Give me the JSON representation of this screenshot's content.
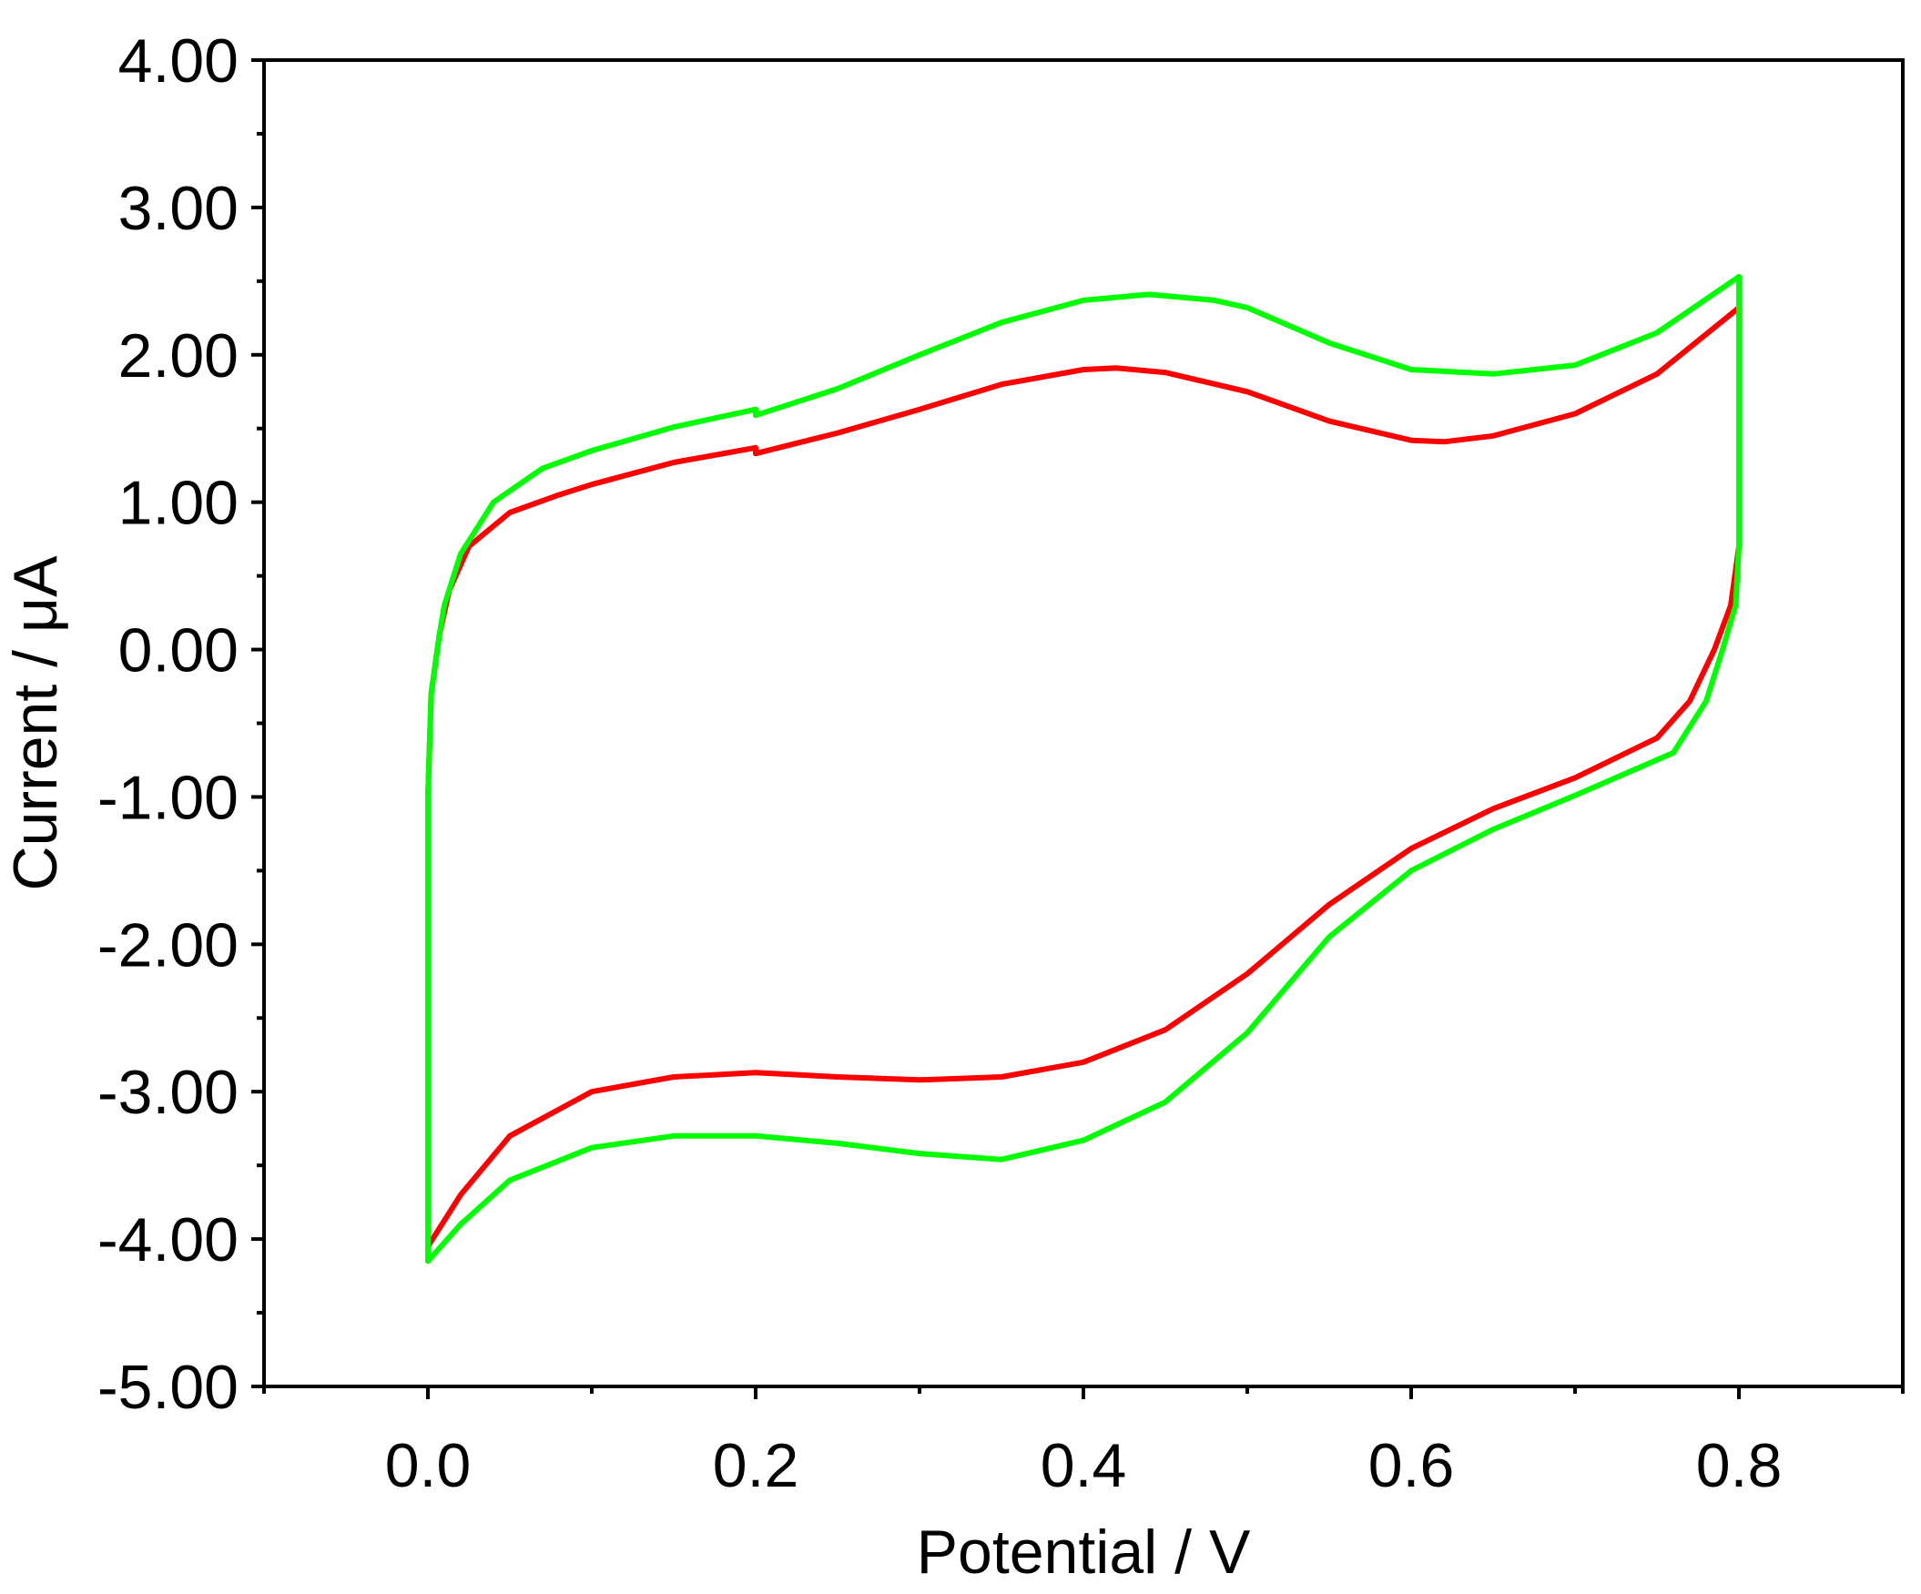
{
  "chart_data": {
    "type": "line",
    "title": "",
    "xlabel": "Potential / V",
    "ylabel": "Current / μA",
    "xlim": [
      -0.1,
      0.9
    ],
    "ylim": [
      -5,
      4
    ],
    "grid": false,
    "legend": "none",
    "x_ticks": [
      0.0,
      0.2,
      0.4,
      0.6,
      0.8
    ],
    "x_tick_labels": [
      "0.0",
      "0.2",
      "0.4",
      "0.6",
      "0.8"
    ],
    "y_ticks": [
      4,
      3,
      2,
      1,
      0,
      -1,
      -2,
      -3,
      -4,
      -5
    ],
    "y_tick_labels": [
      "4.00",
      "3.00",
      "2.00",
      "1.00",
      "0.00",
      "-1.00",
      "-2.00",
      "-3.00",
      "-4.00",
      "-5.00"
    ],
    "series": [
      {
        "color": "#ff0000",
        "points": [
          [
            0.0,
            -4.1
          ],
          [
            0.0,
            -3.0
          ],
          [
            0.0,
            -2.0
          ],
          [
            0.0,
            -1.0
          ],
          [
            0.002,
            -0.3
          ],
          [
            0.007,
            0.1
          ],
          [
            0.013,
            0.4
          ],
          [
            0.025,
            0.7
          ],
          [
            0.05,
            0.93
          ],
          [
            0.08,
            1.05
          ],
          [
            0.1,
            1.12
          ],
          [
            0.15,
            1.27
          ],
          [
            0.2,
            1.37
          ],
          [
            0.2,
            1.33
          ],
          [
            0.25,
            1.47
          ],
          [
            0.3,
            1.63
          ],
          [
            0.35,
            1.8
          ],
          [
            0.4,
            1.9
          ],
          [
            0.42,
            1.91
          ],
          [
            0.45,
            1.88
          ],
          [
            0.5,
            1.75
          ],
          [
            0.55,
            1.55
          ],
          [
            0.6,
            1.42
          ],
          [
            0.62,
            1.41
          ],
          [
            0.65,
            1.45
          ],
          [
            0.7,
            1.6
          ],
          [
            0.75,
            1.87
          ],
          [
            0.8,
            2.32
          ],
          [
            0.8,
            1.5
          ],
          [
            0.8,
            0.7
          ],
          [
            0.795,
            0.3
          ],
          [
            0.785,
            0.0
          ],
          [
            0.77,
            -0.35
          ],
          [
            0.75,
            -0.6
          ],
          [
            0.7,
            -0.87
          ],
          [
            0.65,
            -1.08
          ],
          [
            0.6,
            -1.35
          ],
          [
            0.55,
            -1.73
          ],
          [
            0.5,
            -2.2
          ],
          [
            0.45,
            -2.58
          ],
          [
            0.4,
            -2.8
          ],
          [
            0.35,
            -2.9
          ],
          [
            0.3,
            -2.92
          ],
          [
            0.25,
            -2.9
          ],
          [
            0.2,
            -2.87
          ],
          [
            0.15,
            -2.9
          ],
          [
            0.1,
            -3.0
          ],
          [
            0.05,
            -3.3
          ],
          [
            0.02,
            -3.7
          ],
          [
            0.0,
            -4.05
          ]
        ]
      },
      {
        "color": "#00ff00",
        "points": [
          [
            0.0,
            -4.15
          ],
          [
            0.0,
            -3.0
          ],
          [
            0.0,
            -2.0
          ],
          [
            0.0,
            -1.0
          ],
          [
            0.002,
            -0.3
          ],
          [
            0.007,
            0.1
          ],
          [
            0.01,
            0.3
          ],
          [
            0.02,
            0.65
          ],
          [
            0.04,
            1.0
          ],
          [
            0.07,
            1.23
          ],
          [
            0.1,
            1.35
          ],
          [
            0.15,
            1.51
          ],
          [
            0.2,
            1.63
          ],
          [
            0.2,
            1.59
          ],
          [
            0.25,
            1.77
          ],
          [
            0.3,
            2.0
          ],
          [
            0.35,
            2.22
          ],
          [
            0.4,
            2.37
          ],
          [
            0.44,
            2.41
          ],
          [
            0.48,
            2.37
          ],
          [
            0.5,
            2.32
          ],
          [
            0.55,
            2.08
          ],
          [
            0.6,
            1.9
          ],
          [
            0.65,
            1.87
          ],
          [
            0.7,
            1.93
          ],
          [
            0.75,
            2.15
          ],
          [
            0.8,
            2.53
          ],
          [
            0.8,
            1.5
          ],
          [
            0.8,
            0.7
          ],
          [
            0.798,
            0.3
          ],
          [
            0.79,
            0.0
          ],
          [
            0.78,
            -0.35
          ],
          [
            0.76,
            -0.7
          ],
          [
            0.7,
            -0.99
          ],
          [
            0.65,
            -1.22
          ],
          [
            0.6,
            -1.5
          ],
          [
            0.55,
            -1.95
          ],
          [
            0.5,
            -2.6
          ],
          [
            0.45,
            -3.07
          ],
          [
            0.4,
            -3.33
          ],
          [
            0.35,
            -3.46
          ],
          [
            0.3,
            -3.42
          ],
          [
            0.25,
            -3.35
          ],
          [
            0.2,
            -3.3
          ],
          [
            0.15,
            -3.3
          ],
          [
            0.1,
            -3.38
          ],
          [
            0.05,
            -3.6
          ],
          [
            0.02,
            -3.9
          ],
          [
            0.0,
            -4.15
          ]
        ]
      }
    ]
  }
}
